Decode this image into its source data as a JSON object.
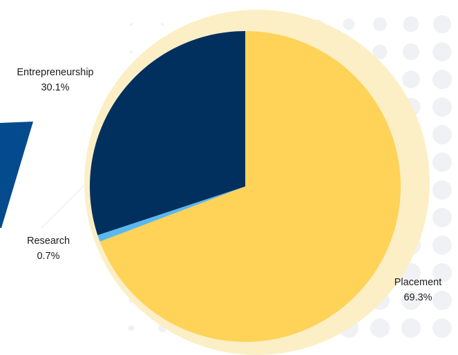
{
  "colors": {
    "placement": "#FFD258",
    "entrepreneurship": "#02305E",
    "research": "#5BB8EE",
    "halo": "#FCEFC6",
    "blue_stripe": "#034B8D",
    "dots": "#F0F1F5"
  },
  "chart_data": {
    "type": "pie",
    "title": "",
    "slices": [
      {
        "name": "Placement",
        "value": 69.3,
        "label": "69.3%"
      },
      {
        "name": "Research",
        "value": 0.7,
        "label": "0.7%"
      },
      {
        "name": "Entrepreneurship",
        "value": 30.1,
        "label": "30.1%"
      }
    ]
  }
}
